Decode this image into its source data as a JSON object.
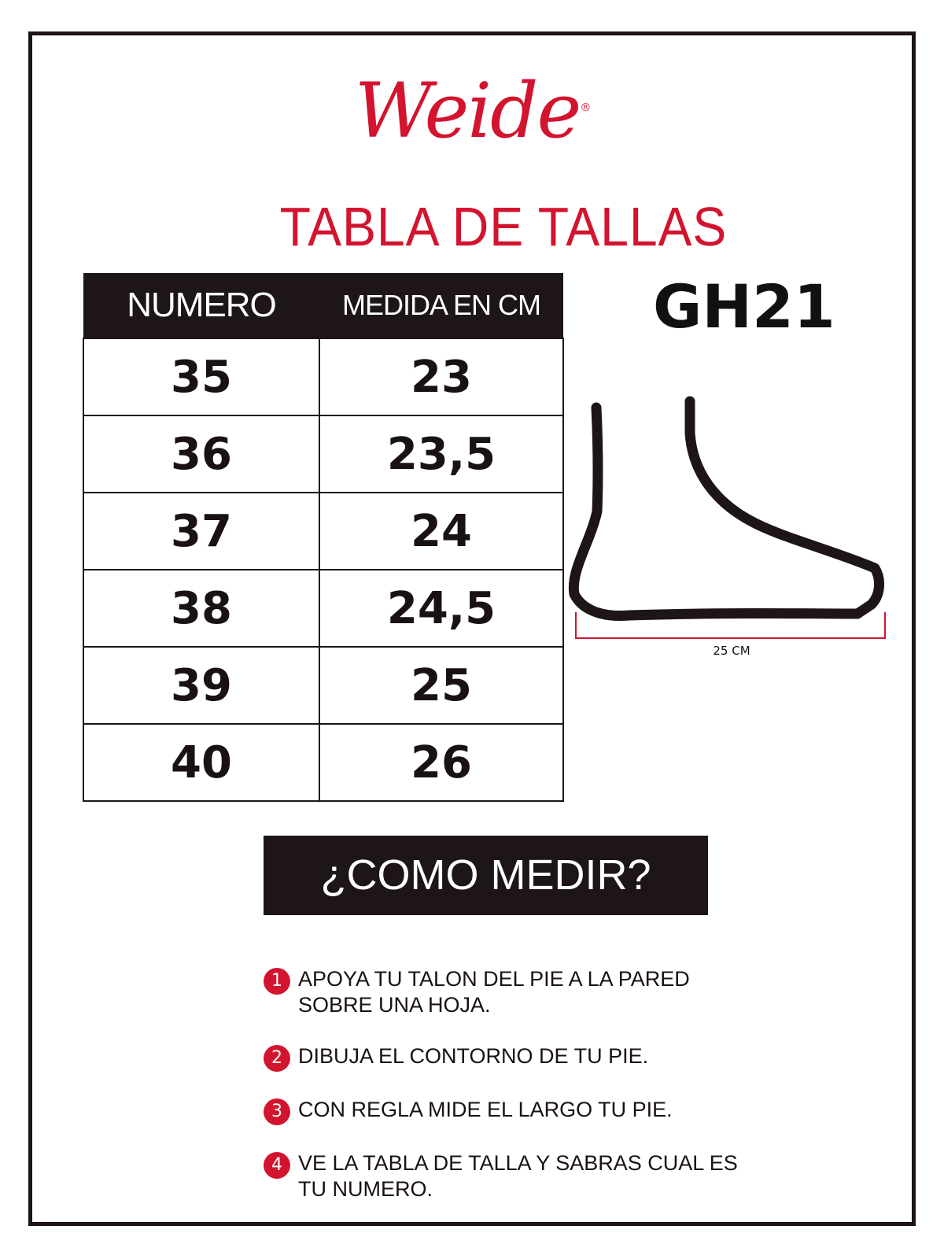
{
  "brand": {
    "logo_text": "Weide",
    "registered": "®",
    "color": "#d3142f"
  },
  "title": "TABLA DE TALLAS",
  "model": "GH21",
  "table": {
    "headers": [
      "NUMERO",
      "MEDIDA EN CM"
    ],
    "rows": [
      [
        "35",
        "23"
      ],
      [
        "36",
        "23,5"
      ],
      [
        "37",
        "24"
      ],
      [
        "38",
        "24,5"
      ],
      [
        "39",
        "25"
      ],
      [
        "40",
        "26"
      ]
    ]
  },
  "foot_diagram": {
    "icon": "foot-outline-icon",
    "measure_label": "25 CM"
  },
  "how_to": {
    "heading": "¿COMO MEDIR?",
    "steps": [
      {
        "n": "1",
        "text": "APOYA TU TALON DEL PIE A LA PARED SOBRE UNA HOJA."
      },
      {
        "n": "2",
        "text": "DIBUJA EL CONTORNO DE TU PIE."
      },
      {
        "n": "3",
        "text": "CON REGLA MIDE EL LARGO TU PIE."
      },
      {
        "n": "4",
        "text": "VE LA TABLA DE TALLA Y SABRAS CUAL ES TU NUMERO."
      }
    ]
  }
}
